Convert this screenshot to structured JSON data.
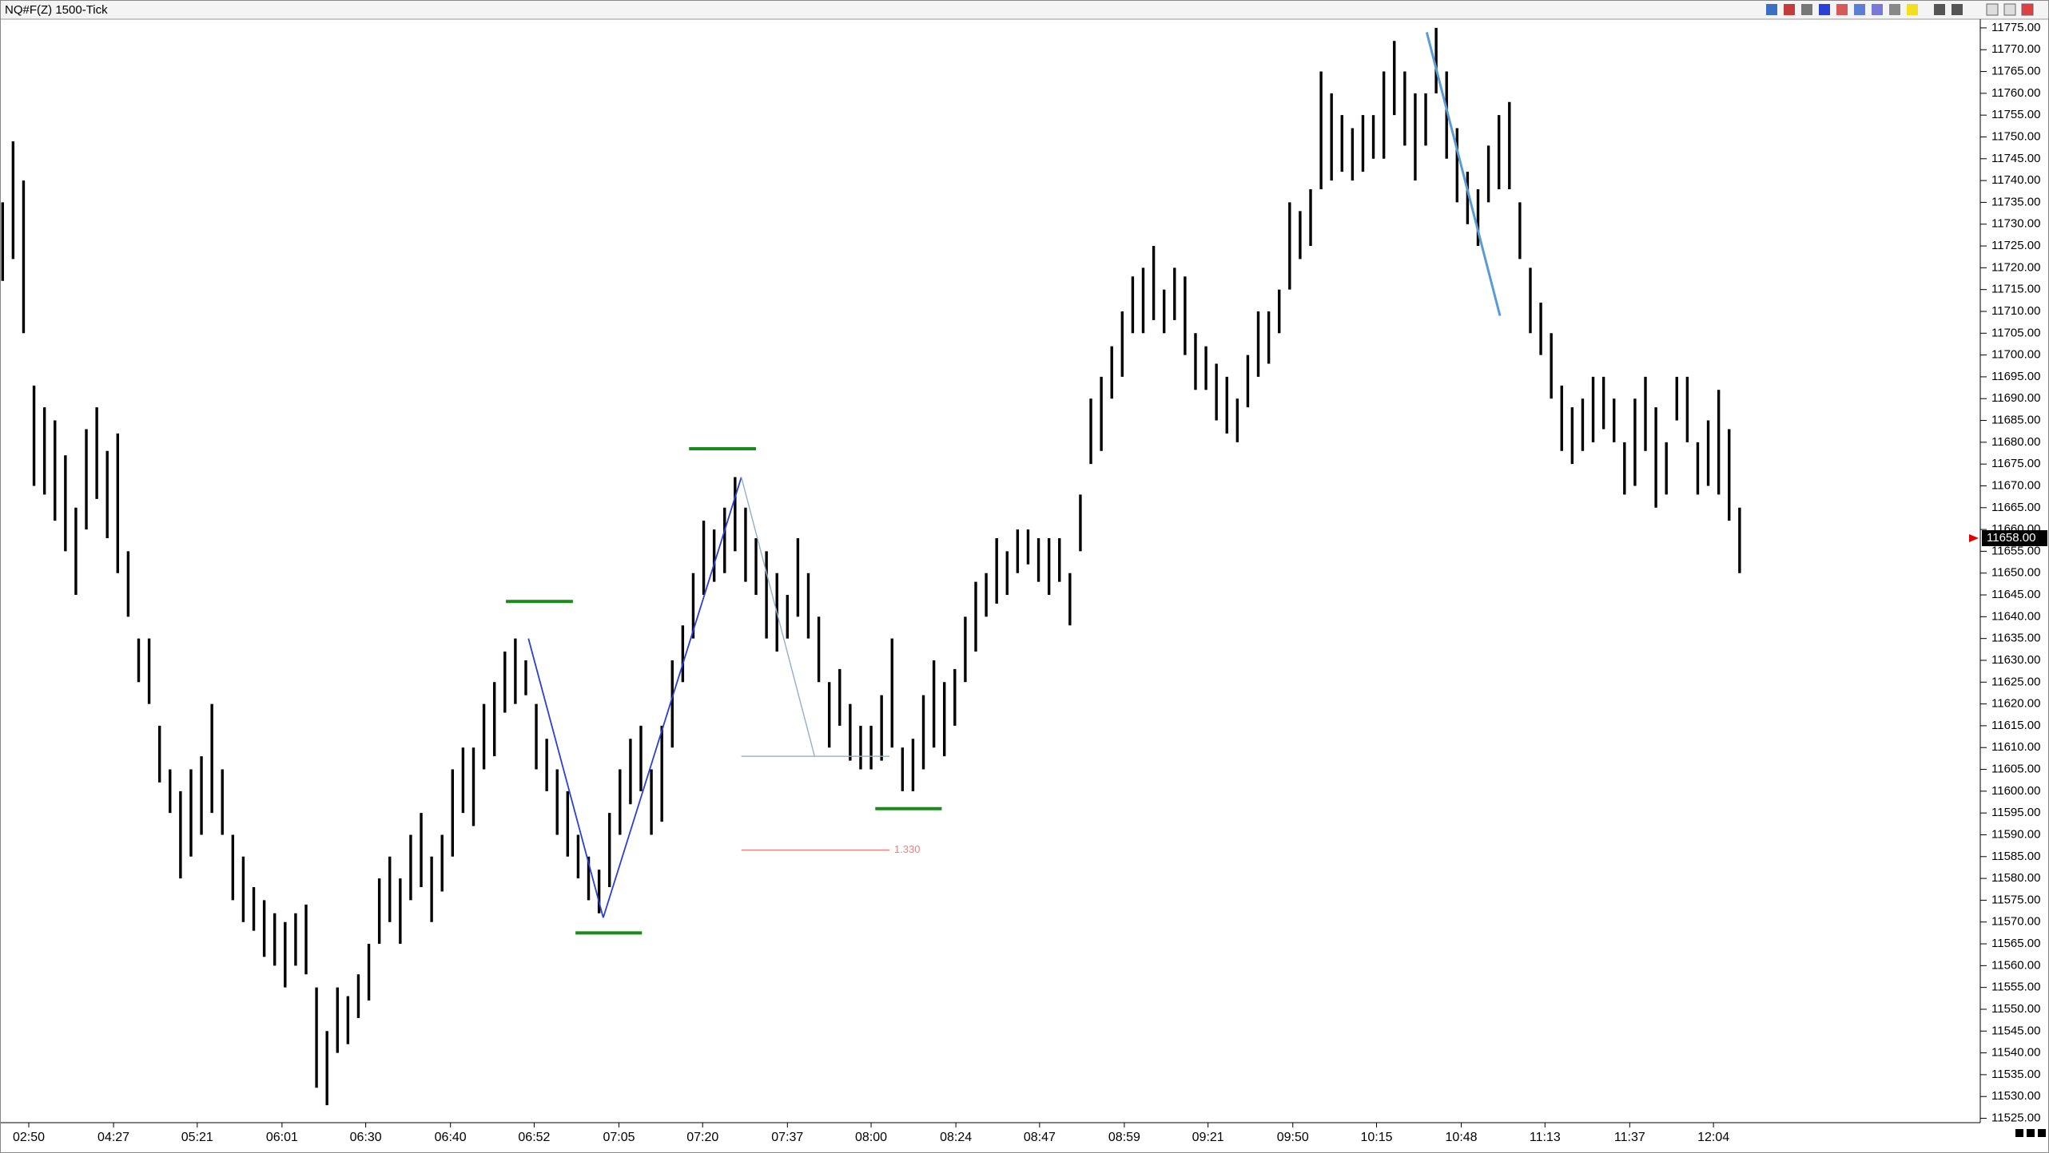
{
  "chart_data": {
    "type": "ohlc",
    "title": "NQ#F(Z) 1500-Tick",
    "color": "#000000",
    "high": [
      11735,
      11749,
      11740,
      11693,
      11688,
      11685,
      11677,
      11665,
      11683,
      11688,
      11678,
      11682,
      11655,
      11635,
      11635,
      11615,
      11605,
      11600,
      11605,
      11608,
      11620,
      11605,
      11590,
      11585,
      11578,
      11575,
      11572,
      11570,
      11572,
      11574,
      11555,
      11545,
      11555,
      11553,
      11558,
      11565,
      11580,
      11585,
      11580,
      11590,
      11595,
      11585,
      11590,
      11605,
      11610,
      11610,
      11620,
      11625,
      11632,
      11635,
      11630,
      11620,
      11612,
      11605,
      11600,
      11590,
      11585,
      11582,
      11595,
      11605,
      11612,
      11615,
      11605,
      11615,
      11630,
      11638,
      11650,
      11662,
      11660,
      11665,
      11672,
      11665,
      11658,
      11655,
      11650,
      11645,
      11658,
      11650,
      11640,
      11625,
      11628,
      11620,
      11615,
      11615,
      11622,
      11635,
      11610,
      11612,
      11622,
      11630,
      11625,
      11628,
      11640,
      11648,
      11650,
      11658,
      11655,
      11660,
      11660,
      11658,
      11658,
      11658,
      11650,
      11668,
      11690,
      11695,
      11702,
      11710,
      11718,
      11720,
      11725,
      11715,
      11720,
      11718,
      11705,
      11702,
      11698,
      11695,
      11690,
      11700,
      11710,
      11710,
      11715,
      11735,
      11733,
      11738,
      11765,
      11760,
      11755,
      11752,
      11755,
      11755,
      11765,
      11772,
      11765,
      11760,
      11760,
      11775,
      11765,
      11752,
      11742,
      11738,
      11748,
      11755,
      11758,
      11735,
      11720,
      11712,
      11705,
      11693,
      11688,
      11690,
      11695,
      11695,
      11690,
      11680,
      11690,
      11695,
      11688,
      11680,
      11695,
      11695,
      11680,
      11685,
      11692,
      11683,
      11665
    ],
    "low": [
      11717,
      11722,
      11705,
      11670,
      11668,
      11662,
      11655,
      11645,
      11660,
      11667,
      11658,
      11650,
      11640,
      11625,
      11620,
      11602,
      11595,
      11580,
      11585,
      11590,
      11595,
      11590,
      11575,
      11570,
      11568,
      11562,
      11560,
      11555,
      11560,
      11558,
      11532,
      11528,
      11540,
      11542,
      11548,
      11552,
      11565,
      11570,
      11565,
      11575,
      11578,
      11570,
      11577,
      11585,
      11595,
      11592,
      11605,
      11608,
      11618,
      11620,
      11622,
      11605,
      11600,
      11590,
      11585,
      11580,
      11575,
      11572,
      11578,
      11590,
      11597,
      11600,
      11590,
      11593,
      11610,
      11625,
      11635,
      11645,
      11648,
      11650,
      11655,
      11648,
      11645,
      11635,
      11632,
      11635,
      11640,
      11635,
      11625,
      11610,
      11615,
      11607,
      11605,
      11605,
      11607,
      11610,
      11600,
      11600,
      11605,
      11610,
      11608,
      11615,
      11625,
      11632,
      11640,
      11643,
      11645,
      11650,
      11652,
      11648,
      11645,
      11648,
      11638,
      11655,
      11675,
      11678,
      11690,
      11695,
      11705,
      11705,
      11708,
      11705,
      11708,
      11700,
      11692,
      11692,
      11685,
      11682,
      11680,
      11688,
      11695,
      11698,
      11705,
      11715,
      11722,
      11725,
      11738,
      11740,
      11742,
      11740,
      11742,
      11745,
      11745,
      11755,
      11748,
      11740,
      11748,
      11760,
      11745,
      11735,
      11730,
      11725,
      11735,
      11738,
      11738,
      11722,
      11705,
      11700,
      11690,
      11678,
      11675,
      11678,
      11680,
      11683,
      11680,
      11668,
      11670,
      11678,
      11665,
      11668,
      11685,
      11680,
      11668,
      11670,
      11668,
      11662,
      11650
    ],
    "xlim": [
      -0.25,
      189
    ],
    "ylim": [
      11524,
      11777
    ],
    "xticks": [
      {
        "value": 2.5,
        "label": "02:50"
      },
      {
        "value": 10.6,
        "label": "04:27"
      },
      {
        "value": 18.6,
        "label": "05:21"
      },
      {
        "value": 26.7,
        "label": "06:01"
      },
      {
        "value": 34.7,
        "label": "06:30"
      },
      {
        "value": 42.8,
        "label": "06:40"
      },
      {
        "value": 50.8,
        "label": "06:52"
      },
      {
        "value": 58.9,
        "label": "07:05"
      },
      {
        "value": 66.9,
        "label": "07:20"
      },
      {
        "value": 75,
        "label": "07:37"
      },
      {
        "value": 83,
        "label": "08:00"
      },
      {
        "value": 91.1,
        "label": "08:24"
      },
      {
        "value": 99.1,
        "label": "08:47"
      },
      {
        "value": 107.2,
        "label": "08:59"
      },
      {
        "value": 115.2,
        "label": "09:21"
      },
      {
        "value": 123.3,
        "label": "09:50"
      },
      {
        "value": 131.3,
        "label": "10:15"
      },
      {
        "value": 139.4,
        "label": "10:48"
      },
      {
        "value": 147.4,
        "label": "11:13"
      },
      {
        "value": 155.5,
        "label": "11:37"
      },
      {
        "value": 163.5,
        "label": "12:04"
      }
    ],
    "yticks": [
      {
        "value": 11525,
        "label": "11525.00"
      },
      {
        "value": 11530,
        "label": "11530.00"
      },
      {
        "value": 11535,
        "label": "11535.00"
      },
      {
        "value": 11540,
        "label": "11540.00"
      },
      {
        "value": 11545,
        "label": "11545.00"
      },
      {
        "value": 11550,
        "label": "11550.00"
      },
      {
        "value": 11555,
        "label": "11555.00"
      },
      {
        "value": 11560,
        "label": "11560.00"
      },
      {
        "value": 11565,
        "label": "11565.00"
      },
      {
        "value": 11570,
        "label": "11570.00"
      },
      {
        "value": 11575,
        "label": "11575.00"
      },
      {
        "value": 11580,
        "label": "11580.00"
      },
      {
        "value": 11585,
        "label": "11585.00"
      },
      {
        "value": 11590,
        "label": "11590.00"
      },
      {
        "value": 11595,
        "label": "11595.00"
      },
      {
        "value": 11600,
        "label": "11600.00"
      },
      {
        "value": 11605,
        "label": "11605.00"
      },
      {
        "value": 11610,
        "label": "11610.00"
      },
      {
        "value": 11615,
        "label": "11615.00"
      },
      {
        "value": 11620,
        "label": "11620.00"
      },
      {
        "value": 11625,
        "label": "11625.00"
      },
      {
        "value": 11630,
        "label": "11630.00"
      },
      {
        "value": 11635,
        "label": "11635.00"
      },
      {
        "value": 11640,
        "label": "11640.00"
      },
      {
        "value": 11645,
        "label": "11645.00"
      },
      {
        "value": 11650,
        "label": "11650.00"
      },
      {
        "value": 11655,
        "label": "11655.00"
      },
      {
        "value": 11660,
        "label": "11660.00"
      },
      {
        "value": 11665,
        "label": "11665.00"
      },
      {
        "value": 11670,
        "label": "11670.00"
      },
      {
        "value": 11675,
        "label": "11675.00"
      },
      {
        "value": 11680,
        "label": "11680.00"
      },
      {
        "value": 11685,
        "label": "11685.00"
      },
      {
        "value": 11690,
        "label": "11690.00"
      },
      {
        "value": 11695,
        "label": "11695.00"
      },
      {
        "value": 11700,
        "label": "11700.00"
      },
      {
        "value": 11705,
        "label": "11705.00"
      },
      {
        "value": 11710,
        "label": "11710.00"
      },
      {
        "value": 11715,
        "label": "11715.00"
      },
      {
        "value": 11720,
        "label": "11720.00"
      },
      {
        "value": 11725,
        "label": "11725.00"
      },
      {
        "value": 11730,
        "label": "11730.00"
      },
      {
        "value": 11735,
        "label": "11735.00"
      },
      {
        "value": 11740,
        "label": "11740.00"
      },
      {
        "value": 11745,
        "label": "11745.00"
      },
      {
        "value": 11750,
        "label": "11750.00"
      },
      {
        "value": 11755,
        "label": "11755.00"
      },
      {
        "value": 11760,
        "label": "11760.00"
      },
      {
        "value": 11765,
        "label": "11765.00"
      },
      {
        "value": 11770,
        "label": "11770.00"
      },
      {
        "value": 11775,
        "label": "11775.00"
      }
    ],
    "last_price": {
      "value": 11658,
      "label": "11658.00"
    },
    "levels": [
      {
        "y": 11643.5,
        "x": [
          48.1,
          54.5
        ],
        "color": "#1a8a1a"
      },
      {
        "y": 11678.5,
        "x": [
          65.6,
          72
        ],
        "color": "#1a8a1a"
      },
      {
        "y": 11567.5,
        "x": [
          54.75,
          61.1
        ],
        "color": "#1a8a1a"
      },
      {
        "y": 11596,
        "x": [
          83.4,
          89.75
        ],
        "color": "#1a8a1a"
      }
    ],
    "trendlines": [
      {
        "x": [
          50.25,
          57.4
        ],
        "y": [
          11635,
          11571
        ],
        "color": "#2b3fd6"
      },
      {
        "x": [
          57.4,
          70.6
        ],
        "y": [
          11571,
          11672
        ],
        "color": "#2b3fd6"
      },
      {
        "x": [
          70.6,
          77.6
        ],
        "y": [
          11672,
          11608
        ],
        "color": "#8fb0d0"
      },
      {
        "x": [
          70.6,
          84.75
        ],
        "y": [
          11608,
          11608
        ],
        "color": "#8fb0d0"
      },
      {
        "x": [
          70.6,
          84.75
        ],
        "y": [
          11586.5,
          11586.5
        ],
        "color": "#f08080",
        "label": "1.330"
      },
      {
        "x": [
          136.1,
          143.1
        ],
        "y": [
          11774,
          11709
        ],
        "color": "#5b9bd5"
      }
    ]
  }
}
